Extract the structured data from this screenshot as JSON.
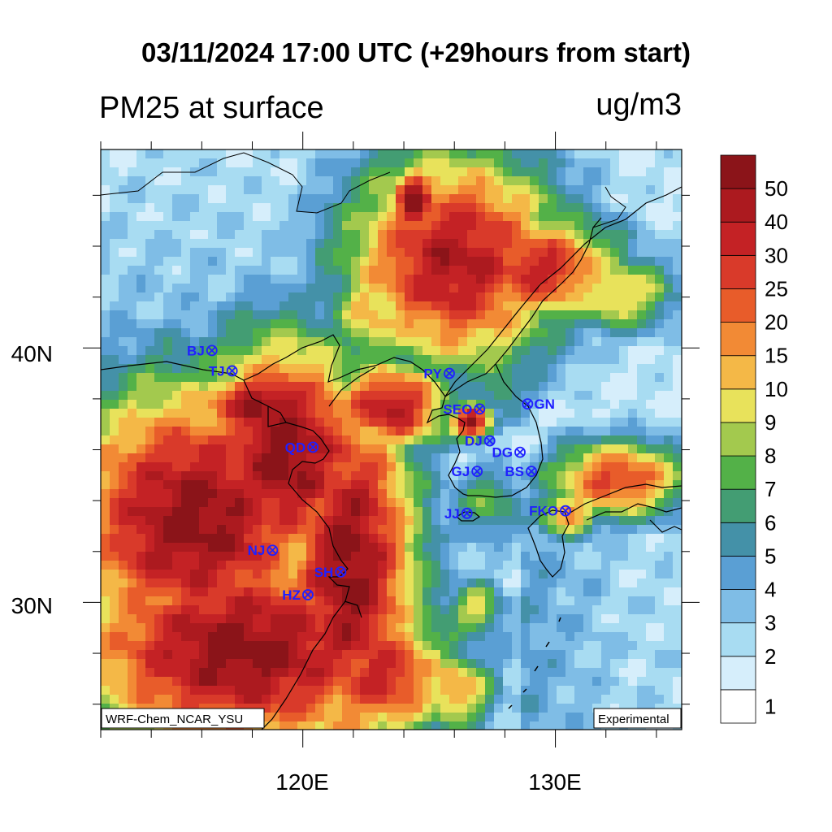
{
  "title": "03/11/2024 17:00 UTC (+29hours from start)",
  "subtitle": "PM25 at surface",
  "units": "ug/m3",
  "model_label": "WRF-Chem_NCAR_YSU",
  "status_label": "Experimental",
  "axes": {
    "lat_ticks": [
      "40N",
      "30N"
    ],
    "lon_ticks": [
      "120E",
      "130E"
    ]
  },
  "colorbar": {
    "labels": [
      "1",
      "2",
      "3",
      "4",
      "5",
      "6",
      "7",
      "8",
      "9",
      "10",
      "15",
      "20",
      "25",
      "30",
      "40",
      "50"
    ],
    "colors": [
      "#ffffff",
      "#d6eefb",
      "#a8dcf2",
      "#7fbde6",
      "#5a9fd4",
      "#4491a8",
      "#439d73",
      "#53b148",
      "#a3c94e",
      "#e8e25b",
      "#f4b847",
      "#f28a35",
      "#e85c2a",
      "#d93a2a",
      "#c42225",
      "#ac1a1f",
      "#8b1419"
    ]
  },
  "stations": [
    {
      "id": "BJ",
      "lon": 116.4,
      "lat": 39.9
    },
    {
      "id": "TJ",
      "lon": 117.2,
      "lat": 39.1
    },
    {
      "id": "QD",
      "lon": 120.4,
      "lat": 36.1
    },
    {
      "id": "PY",
      "lon": 125.8,
      "lat": 39.0
    },
    {
      "id": "SEO",
      "lon": 127.0,
      "lat": 37.6
    },
    {
      "id": "GN",
      "lon": 128.9,
      "lat": 37.8
    },
    {
      "id": "DJ",
      "lon": 127.4,
      "lat": 36.35
    },
    {
      "id": "DG",
      "lon": 128.6,
      "lat": 35.9
    },
    {
      "id": "GJ",
      "lon": 126.9,
      "lat": 35.15
    },
    {
      "id": "BS",
      "lon": 129.05,
      "lat": 35.15
    },
    {
      "id": "JJ",
      "lon": 126.5,
      "lat": 33.5
    },
    {
      "id": "FKO",
      "lon": 130.4,
      "lat": 33.6
    },
    {
      "id": "NJ",
      "lon": 118.8,
      "lat": 32.05
    },
    {
      "id": "SH",
      "lon": 121.5,
      "lat": 31.2
    },
    {
      "id": "HZ",
      "lon": 120.2,
      "lat": 30.3
    }
  ]
}
